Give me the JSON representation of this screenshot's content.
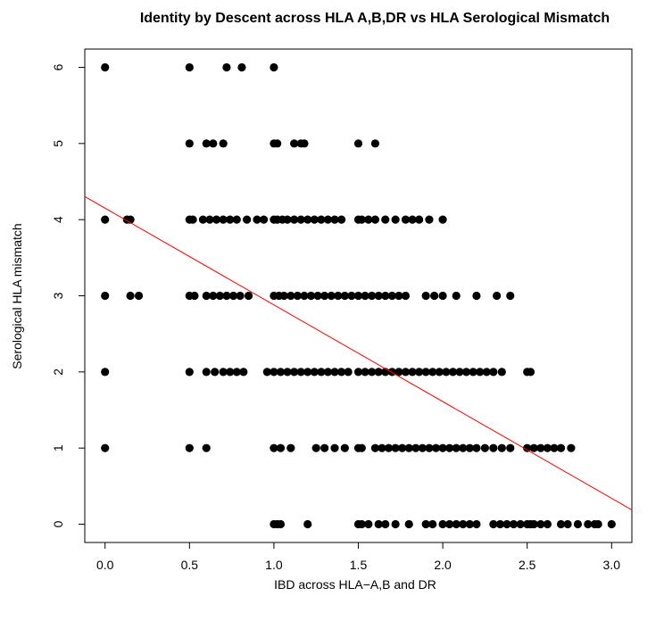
{
  "chart_data": {
    "type": "scatter",
    "title": "Identity by Descent across HLA A,B,DR vs HLA Serological Mismatch",
    "xlabel": "IBD across HLA−A,B and DR",
    "ylabel": "Serological HLA mismatch",
    "xlim": [
      -0.12,
      3.12
    ],
    "ylim": [
      -0.24,
      6.24
    ],
    "x_ticks": [
      0.0,
      0.5,
      1.0,
      1.5,
      2.0,
      2.5,
      3.0
    ],
    "x_tick_labels": [
      "0.0",
      "0.5",
      "1.0",
      "1.5",
      "2.0",
      "2.5",
      "3.0"
    ],
    "y_ticks": [
      0,
      1,
      2,
      3,
      4,
      5,
      6
    ],
    "y_tick_labels": [
      "0",
      "1",
      "2",
      "3",
      "4",
      "5",
      "6"
    ],
    "grid": false,
    "series": [
      {
        "point_color": "#000000",
        "points": [
          [
            0.0,
            6
          ],
          [
            0.5,
            6
          ],
          [
            0.72,
            6
          ],
          [
            0.81,
            6
          ],
          [
            1.0,
            6
          ],
          [
            0.5,
            5
          ],
          [
            0.6,
            5
          ],
          [
            0.64,
            5
          ],
          [
            0.7,
            5
          ],
          [
            1.0,
            5
          ],
          [
            1.02,
            5
          ],
          [
            1.12,
            5
          ],
          [
            1.16,
            5
          ],
          [
            1.18,
            5
          ],
          [
            1.5,
            5
          ],
          [
            1.6,
            5
          ],
          [
            0.0,
            4
          ],
          [
            0.13,
            4
          ],
          [
            0.15,
            4
          ],
          [
            0.5,
            4
          ],
          [
            0.52,
            4
          ],
          [
            0.58,
            4
          ],
          [
            0.62,
            4
          ],
          [
            0.66,
            4
          ],
          [
            0.7,
            4
          ],
          [
            0.74,
            4
          ],
          [
            0.78,
            4
          ],
          [
            0.84,
            4
          ],
          [
            0.9,
            4
          ],
          [
            0.94,
            4
          ],
          [
            1.0,
            4
          ],
          [
            1.02,
            4
          ],
          [
            1.05,
            4
          ],
          [
            1.08,
            4
          ],
          [
            1.12,
            4
          ],
          [
            1.16,
            4
          ],
          [
            1.2,
            4
          ],
          [
            1.24,
            4
          ],
          [
            1.28,
            4
          ],
          [
            1.32,
            4
          ],
          [
            1.36,
            4
          ],
          [
            1.4,
            4
          ],
          [
            1.5,
            4
          ],
          [
            1.52,
            4
          ],
          [
            1.56,
            4
          ],
          [
            1.6,
            4
          ],
          [
            1.66,
            4
          ],
          [
            1.72,
            4
          ],
          [
            1.78,
            4
          ],
          [
            1.82,
            4
          ],
          [
            1.86,
            4
          ],
          [
            1.92,
            4
          ],
          [
            2.0,
            4
          ],
          [
            0.0,
            3
          ],
          [
            0.15,
            3
          ],
          [
            0.2,
            3
          ],
          [
            0.5,
            3
          ],
          [
            0.53,
            3
          ],
          [
            0.6,
            3
          ],
          [
            0.64,
            3
          ],
          [
            0.68,
            3
          ],
          [
            0.72,
            3
          ],
          [
            0.76,
            3
          ],
          [
            0.8,
            3
          ],
          [
            0.85,
            3
          ],
          [
            1.0,
            3
          ],
          [
            1.03,
            3
          ],
          [
            1.06,
            3
          ],
          [
            1.1,
            3
          ],
          [
            1.14,
            3
          ],
          [
            1.18,
            3
          ],
          [
            1.22,
            3
          ],
          [
            1.26,
            3
          ],
          [
            1.3,
            3
          ],
          [
            1.34,
            3
          ],
          [
            1.38,
            3
          ],
          [
            1.42,
            3
          ],
          [
            1.46,
            3
          ],
          [
            1.5,
            3
          ],
          [
            1.54,
            3
          ],
          [
            1.58,
            3
          ],
          [
            1.62,
            3
          ],
          [
            1.66,
            3
          ],
          [
            1.7,
            3
          ],
          [
            1.74,
            3
          ],
          [
            1.78,
            3
          ],
          [
            1.9,
            3
          ],
          [
            1.95,
            3
          ],
          [
            2.0,
            3
          ],
          [
            2.08,
            3
          ],
          [
            2.2,
            3
          ],
          [
            2.32,
            3
          ],
          [
            2.4,
            3
          ],
          [
            0.0,
            2
          ],
          [
            0.5,
            2
          ],
          [
            0.6,
            2
          ],
          [
            0.65,
            2
          ],
          [
            0.7,
            2
          ],
          [
            0.74,
            2
          ],
          [
            0.78,
            2
          ],
          [
            0.82,
            2
          ],
          [
            0.96,
            2
          ],
          [
            1.0,
            2
          ],
          [
            1.04,
            2
          ],
          [
            1.08,
            2
          ],
          [
            1.12,
            2
          ],
          [
            1.16,
            2
          ],
          [
            1.2,
            2
          ],
          [
            1.24,
            2
          ],
          [
            1.28,
            2
          ],
          [
            1.32,
            2
          ],
          [
            1.36,
            2
          ],
          [
            1.4,
            2
          ],
          [
            1.44,
            2
          ],
          [
            1.5,
            2
          ],
          [
            1.54,
            2
          ],
          [
            1.58,
            2
          ],
          [
            1.62,
            2
          ],
          [
            1.66,
            2
          ],
          [
            1.7,
            2
          ],
          [
            1.74,
            2
          ],
          [
            1.78,
            2
          ],
          [
            1.82,
            2
          ],
          [
            1.86,
            2
          ],
          [
            1.9,
            2
          ],
          [
            1.94,
            2
          ],
          [
            1.98,
            2
          ],
          [
            2.02,
            2
          ],
          [
            2.06,
            2
          ],
          [
            2.1,
            2
          ],
          [
            2.14,
            2
          ],
          [
            2.18,
            2
          ],
          [
            2.22,
            2
          ],
          [
            2.26,
            2
          ],
          [
            2.3,
            2
          ],
          [
            2.35,
            2
          ],
          [
            2.5,
            2
          ],
          [
            2.52,
            2
          ],
          [
            0.0,
            1
          ],
          [
            0.5,
            1
          ],
          [
            0.6,
            1
          ],
          [
            1.0,
            1
          ],
          [
            1.04,
            1
          ],
          [
            1.1,
            1
          ],
          [
            1.25,
            1
          ],
          [
            1.3,
            1
          ],
          [
            1.36,
            1
          ],
          [
            1.42,
            1
          ],
          [
            1.5,
            1
          ],
          [
            1.52,
            1
          ],
          [
            1.6,
            1
          ],
          [
            1.64,
            1
          ],
          [
            1.68,
            1
          ],
          [
            1.72,
            1
          ],
          [
            1.76,
            1
          ],
          [
            1.8,
            1
          ],
          [
            1.84,
            1
          ],
          [
            1.88,
            1
          ],
          [
            1.92,
            1
          ],
          [
            1.96,
            1
          ],
          [
            2.0,
            1
          ],
          [
            2.04,
            1
          ],
          [
            2.08,
            1
          ],
          [
            2.12,
            1
          ],
          [
            2.16,
            1
          ],
          [
            2.2,
            1
          ],
          [
            2.25,
            1
          ],
          [
            2.3,
            1
          ],
          [
            2.35,
            1
          ],
          [
            2.4,
            1
          ],
          [
            2.5,
            1
          ],
          [
            2.54,
            1
          ],
          [
            2.58,
            1
          ],
          [
            2.62,
            1
          ],
          [
            2.66,
            1
          ],
          [
            2.7,
            1
          ],
          [
            2.76,
            1
          ],
          [
            1.0,
            0
          ],
          [
            1.02,
            0
          ],
          [
            1.04,
            0
          ],
          [
            1.2,
            0
          ],
          [
            1.5,
            0
          ],
          [
            1.52,
            0
          ],
          [
            1.56,
            0
          ],
          [
            1.62,
            0
          ],
          [
            1.66,
            0
          ],
          [
            1.72,
            0
          ],
          [
            1.8,
            0
          ],
          [
            1.9,
            0
          ],
          [
            1.94,
            0
          ],
          [
            2.0,
            0
          ],
          [
            2.04,
            0
          ],
          [
            2.08,
            0
          ],
          [
            2.12,
            0
          ],
          [
            2.16,
            0
          ],
          [
            2.2,
            0
          ],
          [
            2.3,
            0
          ],
          [
            2.34,
            0
          ],
          [
            2.38,
            0
          ],
          [
            2.42,
            0
          ],
          [
            2.46,
            0
          ],
          [
            2.5,
            0
          ],
          [
            2.52,
            0
          ],
          [
            2.54,
            0
          ],
          [
            2.58,
            0
          ],
          [
            2.62,
            0
          ],
          [
            2.7,
            0
          ],
          [
            2.74,
            0
          ],
          [
            2.8,
            0
          ],
          [
            2.86,
            0
          ],
          [
            2.9,
            0
          ],
          [
            2.92,
            0
          ],
          [
            3.0,
            0
          ]
        ]
      }
    ],
    "regression_line": {
      "color": "#ff0000",
      "intercept": 4.15,
      "slope": -1.27
    }
  }
}
